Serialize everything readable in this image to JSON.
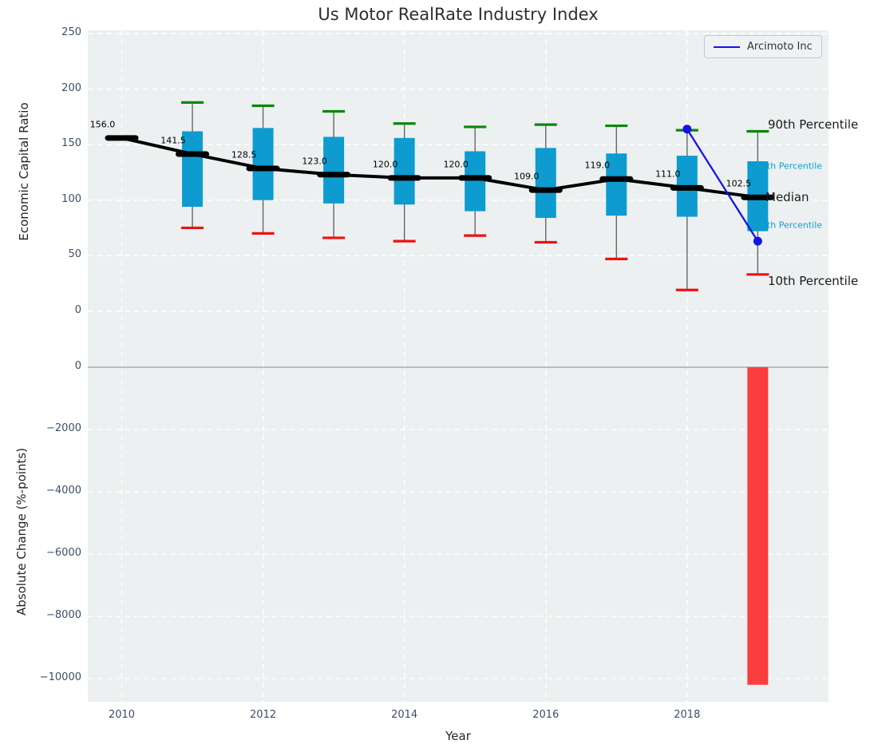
{
  "title": "Us Motor RealRate Industry Index",
  "legend": {
    "label": "Arcimoto Inc"
  },
  "axes": {
    "top": {
      "ylabel": "Economic Capital Ratio",
      "yticks": [
        250,
        200,
        150,
        100,
        50,
        0
      ]
    },
    "bottom": {
      "ylabel": "Absolute Change (%-points)",
      "xlabel": "Year",
      "yticks": [
        0,
        -2000,
        -4000,
        -6000,
        -8000,
        -10000
      ],
      "xticks": [
        2010,
        2012,
        2014,
        2016,
        2018
      ]
    }
  },
  "annotations": {
    "p90": "90th Percentile",
    "p75": "75th Percentile",
    "median": "Median",
    "p25": "25th Percentile",
    "p10": "10th Percentile"
  },
  "colors": {
    "box": "#0d9bd0",
    "p90_cap": "#0a870a",
    "p10_cap": "#ee1111",
    "median": "#000000",
    "company_line": "#1414e6",
    "bar": "#fa3d3d",
    "whisker": "#666666",
    "cyan_text": "#13a0cf",
    "plot_bg": "#ecf0f1",
    "grid": "#ffffff",
    "tick_text": "#3e4e66",
    "zero_line": "#aaaaaa"
  },
  "chart_data": [
    {
      "type": "boxplot",
      "title": "Us Motor RealRate Industry Index",
      "ylabel": "Economic Capital Ratio",
      "x": [
        2010,
        2011,
        2012,
        2013,
        2014,
        2015,
        2016,
        2017,
        2018,
        2019
      ],
      "median": [
        156.0,
        141.5,
        128.5,
        123.0,
        120.0,
        120.0,
        109.0,
        119.0,
        111.0,
        102.5
      ],
      "median_labels": [
        "156.0",
        "141.5",
        "128.5",
        "123.0",
        "120.0",
        "120.0",
        "109.0",
        "119.0",
        "111.0",
        "102.5"
      ],
      "q1_25th": [
        null,
        94,
        100,
        97,
        96,
        90,
        84,
        86,
        85,
        72
      ],
      "q3_75th": [
        null,
        162,
        165,
        157,
        156,
        144,
        147,
        142,
        140,
        135
      ],
      "p10": [
        null,
        75,
        70,
        66,
        63,
        68,
        62,
        47,
        19,
        33
      ],
      "p90": [
        null,
        188,
        185,
        180,
        169,
        166,
        168,
        167,
        163,
        162
      ],
      "series": [
        {
          "name": "Arcimoto Inc",
          "x": [
            2018,
            2019
          ],
          "y": [
            164,
            63
          ]
        }
      ],
      "ylim": [
        -47,
        253
      ],
      "xlim": [
        2009.5,
        2020
      ],
      "grid": true,
      "legend_position": "upper right"
    },
    {
      "type": "bar",
      "ylabel": "Absolute Change (%-points)",
      "xlabel": "Year",
      "x": [
        2019
      ],
      "values": [
        -10200
      ],
      "categories_shown_on_axis": [
        2010,
        2012,
        2014,
        2016,
        2018
      ],
      "ylim": [
        -10720,
        128
      ],
      "grid": true
    }
  ]
}
